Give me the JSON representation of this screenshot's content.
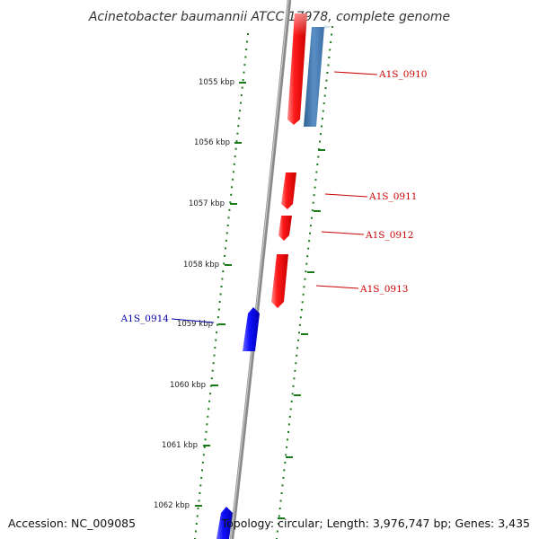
{
  "title": "Acinetobacter baumannii ATCC 17978, complete genome",
  "footer": {
    "accession": "Accession: NC_009085",
    "summary": "Topology: circular; Length: 3,976,747 bp; Genes: 3,435"
  },
  "ticks": [
    {
      "label": "1055 kbp"
    },
    {
      "label": "1056 kbp"
    },
    {
      "label": "1057 kbp"
    },
    {
      "label": "1058 kbp"
    },
    {
      "label": "1059 kbp"
    },
    {
      "label": "1060 kbp"
    },
    {
      "label": "1061 kbp"
    },
    {
      "label": "1062 kbp"
    }
  ],
  "genes": [
    {
      "name": "A1S_0910",
      "strand": "forward",
      "color": "#e8000b"
    },
    {
      "name": "A1S_0911",
      "strand": "forward",
      "color": "#e8000b"
    },
    {
      "name": "A1S_0912",
      "strand": "forward",
      "color": "#e8000b"
    },
    {
      "name": "A1S_0913",
      "strand": "forward",
      "color": "#e8000b"
    },
    {
      "name": "A1S_0914",
      "strand": "reverse",
      "color": "#0000e6"
    }
  ],
  "colors": {
    "forward_label": "#cc0000",
    "reverse_label": "#0000aa",
    "tick_marks": "#1a7a1a",
    "backbone": "#777777",
    "blue_feature": "#4a7fb5"
  }
}
